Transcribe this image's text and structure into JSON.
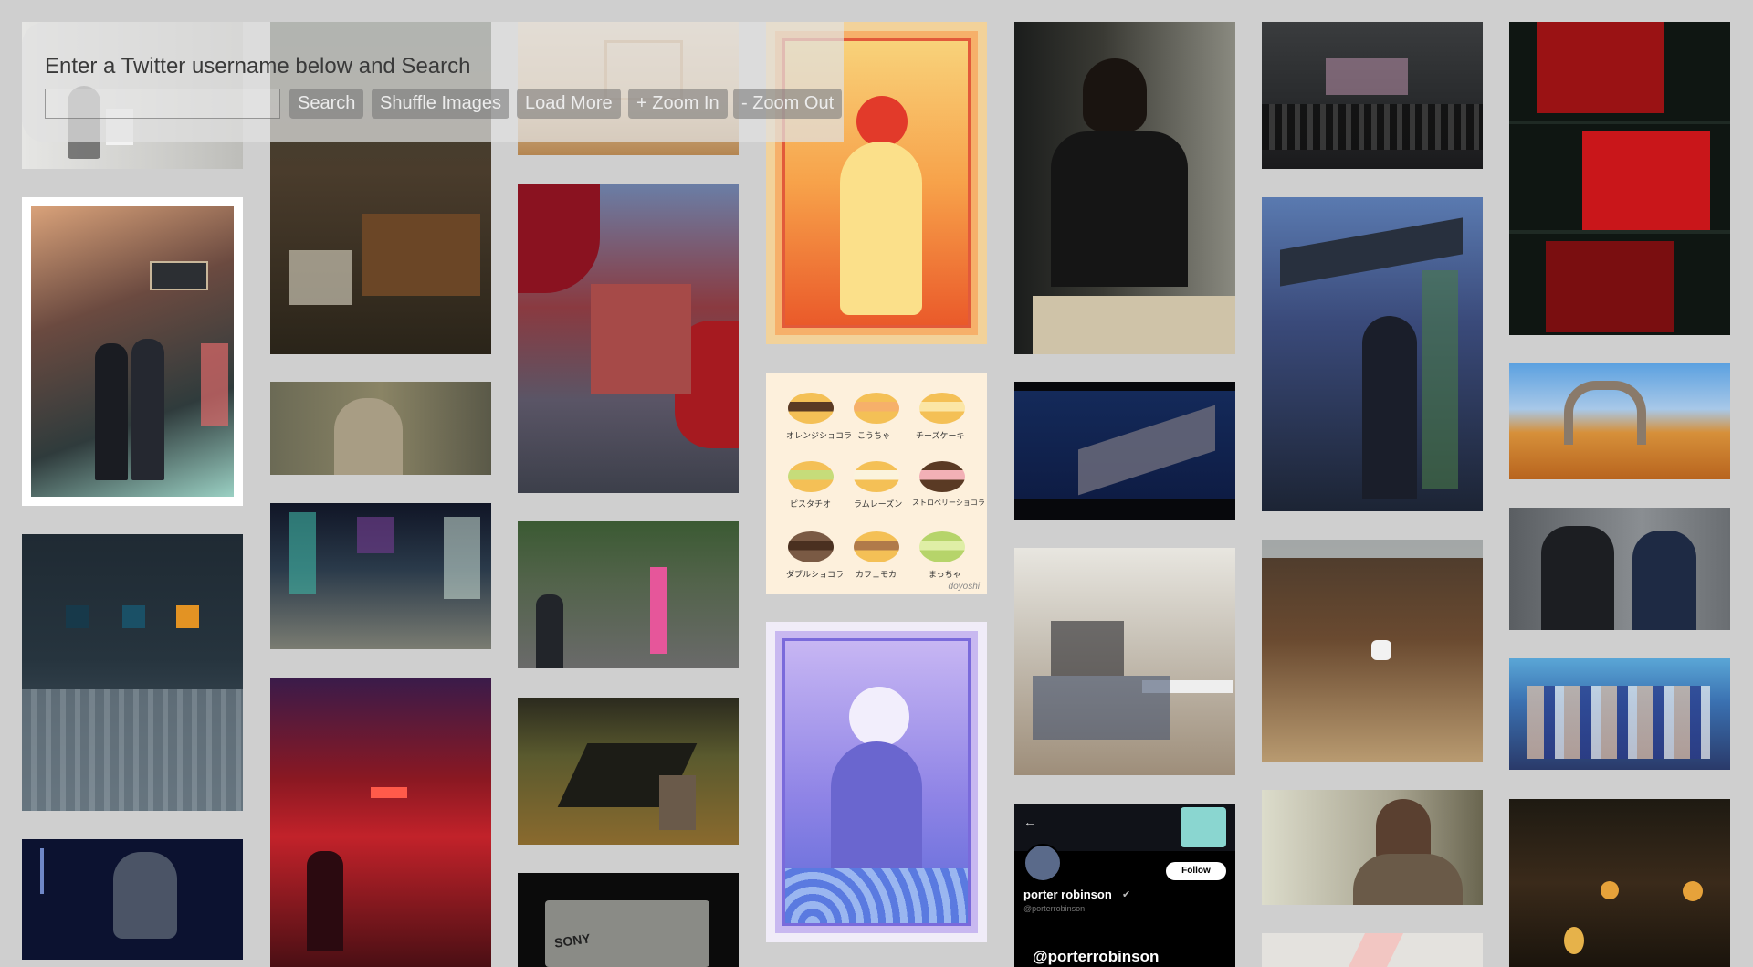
{
  "search": {
    "prompt": "Enter a Twitter username below and Search",
    "input_value": "",
    "input_placeholder": ""
  },
  "toolbar": {
    "search_label": "Search",
    "shuffle_label": "Shuffle Images",
    "load_more_label": "Load More",
    "zoom_in_label": "+ Zoom In",
    "zoom_out_label": "- Zoom Out"
  },
  "gallery": {
    "sweets_labels": [
      "オレンジショコラ",
      "こうちゃ",
      "チーズケーキ",
      "ピスタチオ",
      "ラムレーズン",
      "ストロベリーショコラ",
      "ダブルショコラ",
      "カフェモカ",
      "まっちゃ"
    ],
    "sweets_signature": "doyoshi",
    "profile_name": "porter robinson",
    "profile_handle": "@porterrobinson",
    "profile_follow": "Follow",
    "profile_banner_handle": "@porterrobinson",
    "device_brand": "SONY"
  },
  "colors": {
    "background": "#cfcfcf",
    "overlay": "#e1e1e1",
    "button": "#737373"
  }
}
